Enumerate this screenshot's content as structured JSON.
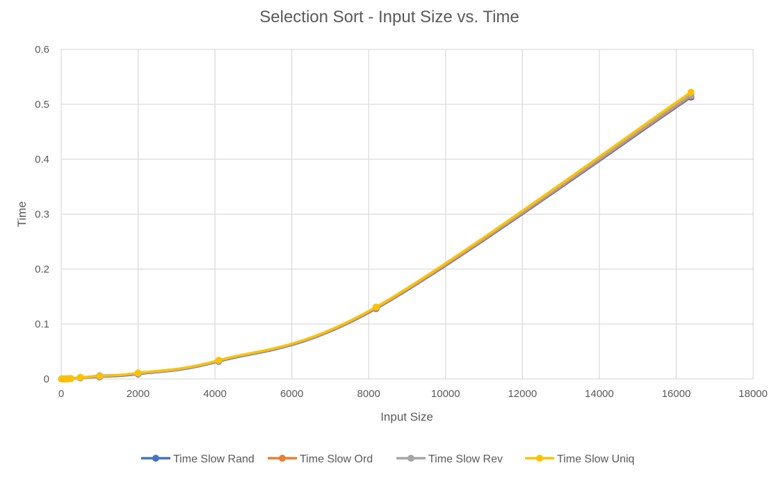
{
  "chart_data": {
    "type": "line",
    "title": "Selection Sort - Input Size vs. Time",
    "xlabel": "Input Size",
    "ylabel": "Time",
    "xlim": [
      0,
      18000
    ],
    "ylim": [
      0,
      0.6
    ],
    "xticks": [
      0,
      2000,
      4000,
      6000,
      8000,
      10000,
      12000,
      14000,
      16000,
      18000
    ],
    "yticks": [
      0,
      0.1,
      0.2,
      0.3,
      0.4,
      0.5,
      0.6
    ],
    "ytick_labels": [
      "0",
      "0.1",
      "0.2",
      "0.3",
      "0.4",
      "0.5",
      "0.6"
    ],
    "grid": true,
    "legend_position": "bottom",
    "smooth": true,
    "x": [
      10,
      20,
      40,
      80,
      160,
      250,
      500,
      1000,
      2000,
      4096,
      8192,
      16384
    ],
    "series": [
      {
        "name": "Time Slow Rand",
        "color": "#4472C4",
        "values": [
          0.0001,
          0.0001,
          0.0001,
          0.0002,
          0.0003,
          0.0006,
          0.002,
          0.004,
          0.009,
          0.032,
          0.128,
          0.513
        ]
      },
      {
        "name": "Time Slow Ord",
        "color": "#ED7D31",
        "values": [
          0.0001,
          0.0001,
          0.0001,
          0.0002,
          0.0003,
          0.0006,
          0.002,
          0.005,
          0.01,
          0.033,
          0.129,
          0.515
        ]
      },
      {
        "name": "Time Slow Rev",
        "color": "#A5A5A5",
        "values": [
          0.0001,
          0.0001,
          0.0001,
          0.0002,
          0.0003,
          0.0006,
          0.002,
          0.006,
          0.01,
          0.033,
          0.13,
          0.517
        ]
      },
      {
        "name": "Time Slow Uniq",
        "color": "#FFC000",
        "values": [
          0.0001,
          0.0001,
          0.0001,
          0.0002,
          0.0003,
          0.0006,
          0.003,
          0.005,
          0.011,
          0.034,
          0.131,
          0.522
        ]
      }
    ]
  }
}
